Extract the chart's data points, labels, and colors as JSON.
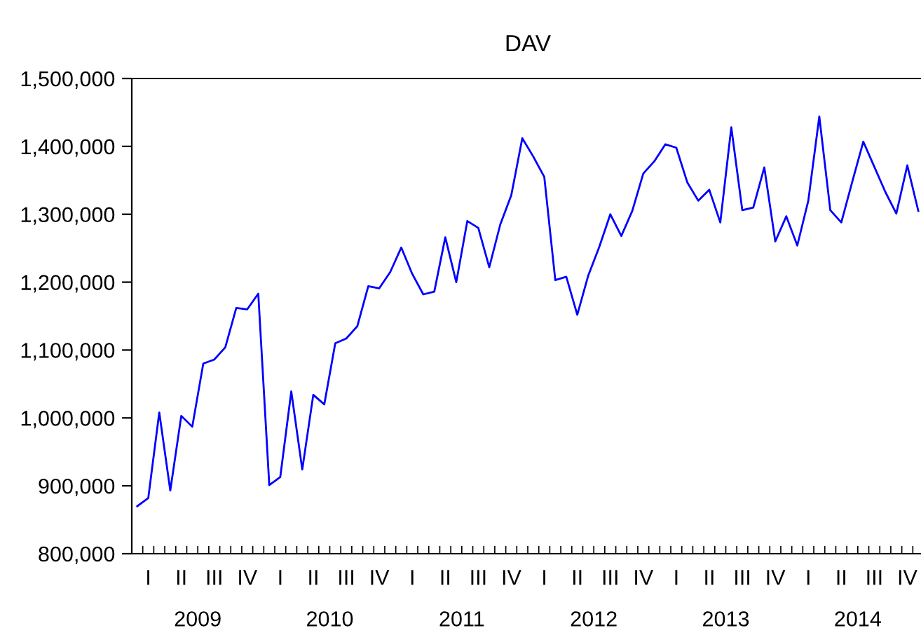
{
  "chart_data": {
    "type": "line",
    "title": "DAV",
    "categories": [
      null,
      "I",
      null,
      null,
      "II",
      null,
      null,
      "III",
      null,
      null,
      "IV",
      null,
      null,
      "I",
      null,
      null,
      "II",
      null,
      null,
      "III",
      null,
      null,
      "IV",
      null,
      null,
      "I",
      null,
      null,
      "II",
      null,
      null,
      "III",
      null,
      null,
      "IV",
      null,
      null,
      "I",
      null,
      null,
      "II",
      null,
      null,
      "III",
      null,
      null,
      "IV",
      null,
      null,
      "I",
      null,
      null,
      "II",
      null,
      null,
      "III",
      null,
      null,
      "IV",
      null,
      null,
      "I",
      null,
      null,
      "II",
      null,
      null,
      "III",
      null,
      null,
      "IV",
      null
    ],
    "series": [
      {
        "color": "#0000ff",
        "values": [
          870000,
          882000,
          1008000,
          893000,
          1003000,
          987000,
          1080000,
          1086000,
          1104000,
          1162000,
          1160000,
          1183000,
          901000,
          913000,
          1039000,
          924000,
          1034000,
          1020000,
          1110000,
          1117000,
          1135000,
          1194000,
          1191000,
          1215000,
          1251000,
          1212000,
          1182000,
          1186000,
          1266000,
          1200000,
          1290000,
          1280000,
          1222000,
          1285000,
          1328000,
          1412000,
          1385000,
          1355000,
          1203000,
          1208000,
          1152000,
          1210000,
          1252000,
          1300000,
          1268000,
          1305000,
          1360000,
          1378000,
          1403000,
          1398000,
          1347000,
          1320000,
          1336000,
          1288000,
          1428000,
          1306000,
          1310000,
          1369000,
          1260000,
          1297000,
          1254000,
          1320000,
          1444000,
          1306000,
          1288000,
          1348000,
          1407000,
          1370000,
          1333000,
          1301000,
          1372000,
          1305000
        ]
      }
    ],
    "annotations": [
      "2009",
      "2010",
      "2011",
      "2012",
      "2013",
      "2014"
    ],
    "ylim": [
      800000,
      1500000
    ],
    "yticks": [
      {
        "value": 800000,
        "label": "800,000"
      },
      {
        "value": 900000,
        "label": "900,000"
      },
      {
        "value": 1000000,
        "label": "1,000,000"
      },
      {
        "value": 1100000,
        "label": "1,100,000"
      },
      {
        "value": 1200000,
        "label": "1,200,000"
      },
      {
        "value": 1300000,
        "label": "1,300,000"
      },
      {
        "value": 1400000,
        "label": "1,400,000"
      },
      {
        "value": 1500000,
        "label": "1,500,000"
      }
    ],
    "grid": false,
    "legend": false
  }
}
